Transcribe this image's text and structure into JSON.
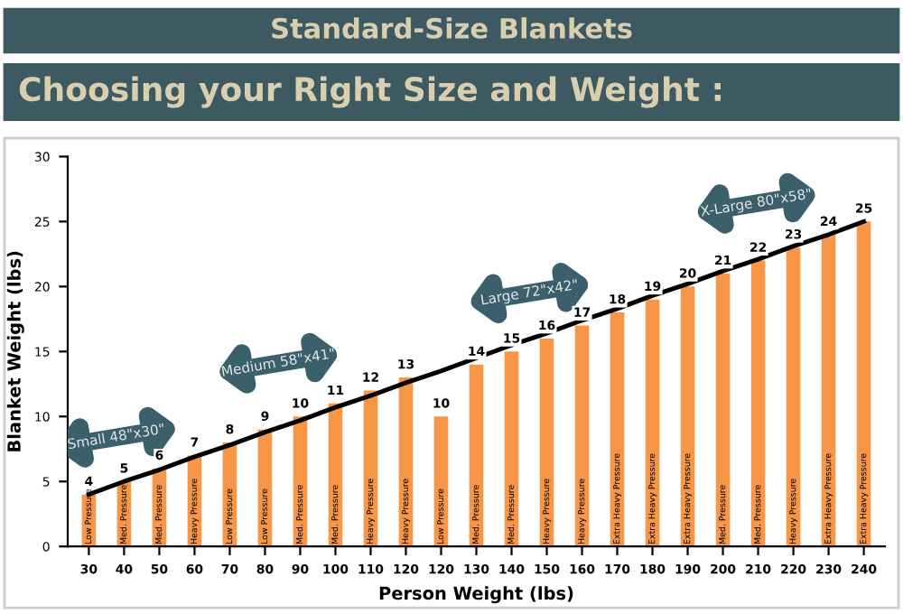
{
  "chart_data": {
    "type": "bar",
    "title": "Standard-Size Blankets",
    "subtitle": "Choosing your Right Size and Weight :",
    "xlabel": "Person Weight (lbs)",
    "ylabel": "Blanket Weight (lbs)",
    "categories": [
      "30",
      "40",
      "50",
      "60",
      "70",
      "80",
      "90",
      "100",
      "110",
      "120",
      "120",
      "130",
      "140",
      "150",
      "160",
      "170",
      "180",
      "190",
      "200",
      "210",
      "220",
      "230",
      "240"
    ],
    "series": [
      {
        "color": "#f79646",
        "values": [
          4,
          5,
          6,
          7,
          8,
          9,
          10,
          11,
          12,
          13,
          10,
          14,
          15,
          16,
          17,
          18,
          19,
          20,
          21,
          22,
          23,
          24,
          25
        ],
        "value_labels": [
          "4",
          "5",
          "6",
          "7",
          "8",
          "9",
          "10",
          "11",
          "12",
          "13",
          "10",
          "14",
          "15",
          "16",
          "17",
          "18",
          "19",
          "20",
          "21",
          "22",
          "23",
          "24",
          "25"
        ]
      },
      {
        "type": "line",
        "color": "#000000",
        "values": [
          4,
          5,
          5.9,
          6.9,
          7.8,
          8.8,
          9.7,
          10.7,
          11.6,
          12.6,
          13.5,
          14.5,
          15.5,
          16.4,
          17.4,
          18.3,
          19.3,
          20.2,
          21.2,
          22.1,
          23.1,
          24,
          25
        ]
      }
    ],
    "ylim": [
      0,
      30
    ],
    "yticks": [
      0,
      5,
      10,
      15,
      20,
      25,
      30
    ],
    "grid": false,
    "legend": false,
    "annotations": [
      "Small 48\"x30\"",
      "Medium 58\"x41\"",
      "Large 72\"x42\"",
      "X-Large 80\"x58\"",
      "Low Pressure",
      "Med. Pressure",
      "Med. Pressure",
      "Heavy Pressure",
      "Low Pressure",
      "Low Pressure",
      "Med. Pressure",
      "Med. Pressure",
      "Heavy Pressure",
      "Heavy Pressure",
      "Low Pressure",
      "Med. Pressure",
      "Med. Pressure",
      "Heavy Pressure",
      "Heavy Pressure",
      "Extra Heavy Pressure",
      "Extra Heavy Pressure",
      "Extra Heavy Pressure",
      "Med. Pressure",
      "Med. Pressure",
      "Heavy Pressure",
      "Extra Heavy Pressure",
      "Extra Heavy Pressure"
    ]
  }
}
